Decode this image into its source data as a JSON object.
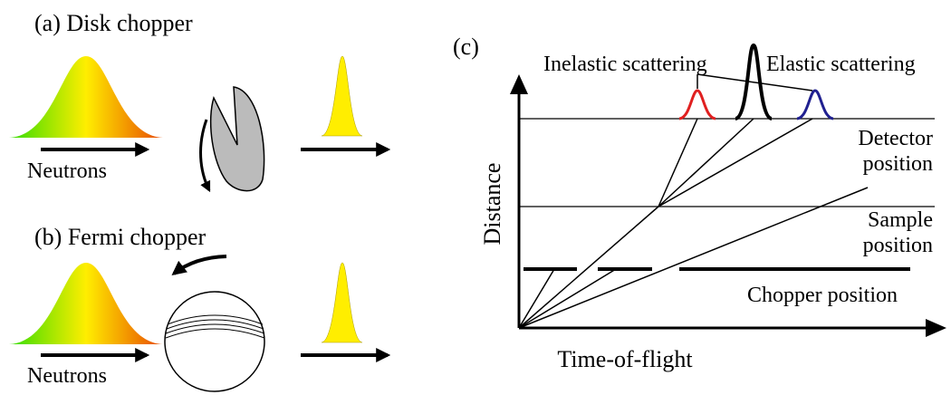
{
  "panels": {
    "a": {
      "title": "(a) Disk chopper",
      "label": "Neutrons"
    },
    "b": {
      "title": "(b) Fermi chopper",
      "label": "Neutrons"
    },
    "c": {
      "title": "(c)",
      "inelastic": "Inelastic scattering",
      "elastic": "Elastic scattering",
      "detector": [
        "Detector",
        "position"
      ],
      "sample": [
        "Sample",
        "position"
      ],
      "chopper": "Chopper position",
      "y_axis": "Distance",
      "x_axis": "Time-of-flight"
    }
  }
}
